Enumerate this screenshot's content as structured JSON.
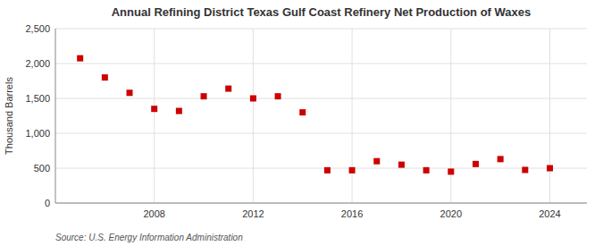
{
  "chart_data": {
    "type": "scatter",
    "title": "Annual Refining District Texas Gulf Coast Refinery Net Production of Waxes",
    "y_label": "Thousand Barrels",
    "annotations": [
      "Source: U.S. Energy Information Administration"
    ],
    "x": [
      2005,
      2006,
      2007,
      2008,
      2009,
      2010,
      2011,
      2012,
      2013,
      2014,
      2015,
      2016,
      2017,
      2018,
      2019,
      2020,
      2021,
      2022,
      2023,
      2024
    ],
    "values": [
      2075,
      1800,
      1580,
      1350,
      1320,
      1530,
      1640,
      1500,
      1530,
      1300,
      470,
      470,
      600,
      550,
      470,
      450,
      560,
      630,
      475,
      500
    ],
    "color": "#cc0000",
    "marker": "square",
    "grid": true,
    "xlim": [
      2004,
      2025.5
    ],
    "xticks": [
      2008,
      2012,
      2016,
      2020,
      2024
    ],
    "ylim": [
      0,
      2500
    ],
    "yticks": [
      0,
      500,
      {
        "value": 1000,
        "label": "1,000"
      },
      {
        "value": 1500,
        "label": "1,500"
      },
      {
        "value": 2000,
        "label": "2,000"
      },
      {
        "value": 2500,
        "label": "2,500"
      }
    ]
  }
}
